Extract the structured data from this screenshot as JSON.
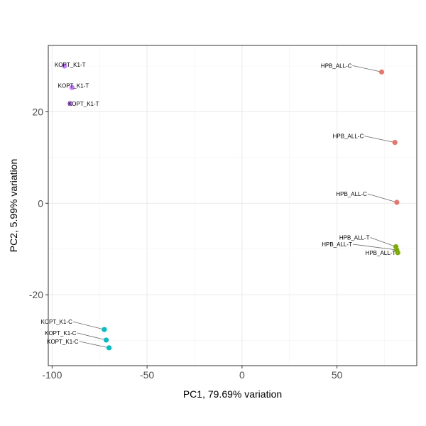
{
  "chart_data": {
    "type": "scatter",
    "xlabel": "PC1, 79.69% variation",
    "ylabel": "PC2, 5.99% variation",
    "xlim": [
      -102,
      92
    ],
    "ylim": [
      -35.5,
      34.5
    ],
    "x_ticks": [
      -100,
      -50,
      0,
      50
    ],
    "x_tick_labels": [
      "-100",
      "-50",
      "0",
      "50"
    ],
    "y_ticks": [
      -20,
      0,
      20
    ],
    "y_tick_labels": [
      "-20",
      "0",
      "20"
    ],
    "grid": true,
    "legend": "none",
    "colors": {
      "HPB_ALL-C": "#e8766d",
      "HPB_ALL-T": "#7cae00",
      "KOPT_K1-C": "#00bfc4",
      "KOPT_K1-T": "#c77cff"
    },
    "points": [
      {
        "label": "HPB_ALL-C",
        "group": "HPB_ALL-C",
        "x": 73.5,
        "y": 28.7
      },
      {
        "label": "HPB_ALL-C",
        "group": "HPB_ALL-C",
        "x": 80.5,
        "y": 13.3
      },
      {
        "label": "HPB_ALL-C",
        "group": "HPB_ALL-C",
        "x": 81.5,
        "y": 0.2
      },
      {
        "label": "HPB_ALL-T",
        "group": "HPB_ALL-T",
        "x": 81.0,
        "y": -9.5
      },
      {
        "label": "HPB_ALL-T",
        "group": "HPB_ALL-T",
        "x": 82.0,
        "y": -10.8
      },
      {
        "label": "HPB_ALL-T",
        "group": "HPB_ALL-T",
        "x": 81.5,
        "y": -10.2
      },
      {
        "label": "KOPT_K1-C",
        "group": "KOPT_K1-C",
        "x": -72.5,
        "y": -27.6
      },
      {
        "label": "KOPT_K1-C",
        "group": "KOPT_K1-C",
        "x": -71.5,
        "y": -29.9
      },
      {
        "label": "KOPT_K1-C",
        "group": "KOPT_K1-C",
        "x": -70.0,
        "y": -31.6
      },
      {
        "label": "KOPT_K1-T",
        "group": "KOPT_K1-T",
        "x": -93.5,
        "y": 30.0
      },
      {
        "label": "KOPT_K1-T",
        "group": "KOPT_K1-T",
        "x": -89.5,
        "y": 25.3
      },
      {
        "label": "KOPT_K1-T",
        "group": "KOPT_K1-T",
        "x": -90.5,
        "y": 21.8
      }
    ]
  }
}
